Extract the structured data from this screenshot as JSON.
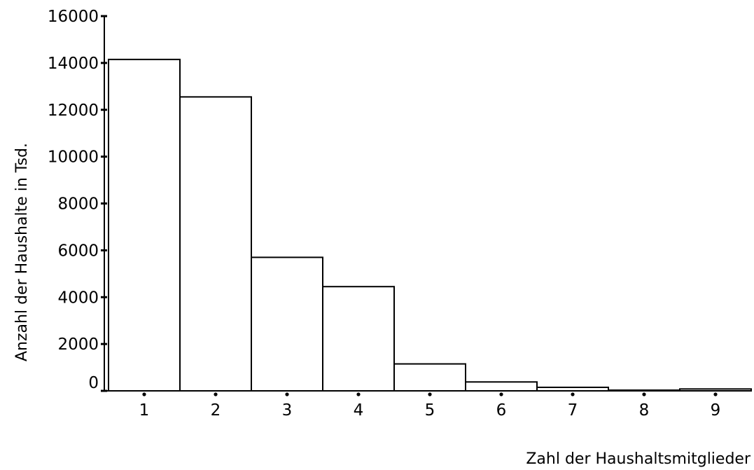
{
  "chart_data": {
    "type": "bar",
    "categories": [
      "1",
      "2",
      "3",
      "4",
      "5",
      "6",
      "7",
      "8",
      "9"
    ],
    "values": [
      14150,
      12550,
      5700,
      4450,
      1150,
      380,
      150,
      30,
      80
    ],
    "title": "",
    "xlabel": "Zahl der Haushaltsmitglieder",
    "ylabel": "Anzahl der Haushalte in Tsd.",
    "ylim": [
      0,
      16000
    ],
    "yticks": [
      "0",
      "2000",
      "4000",
      "6000",
      "8000",
      "10000",
      "12000",
      "14000",
      "16000"
    ],
    "grid": false,
    "legend": "none",
    "bar_fill": "#ffffff",
    "bar_stroke": "#000000"
  }
}
